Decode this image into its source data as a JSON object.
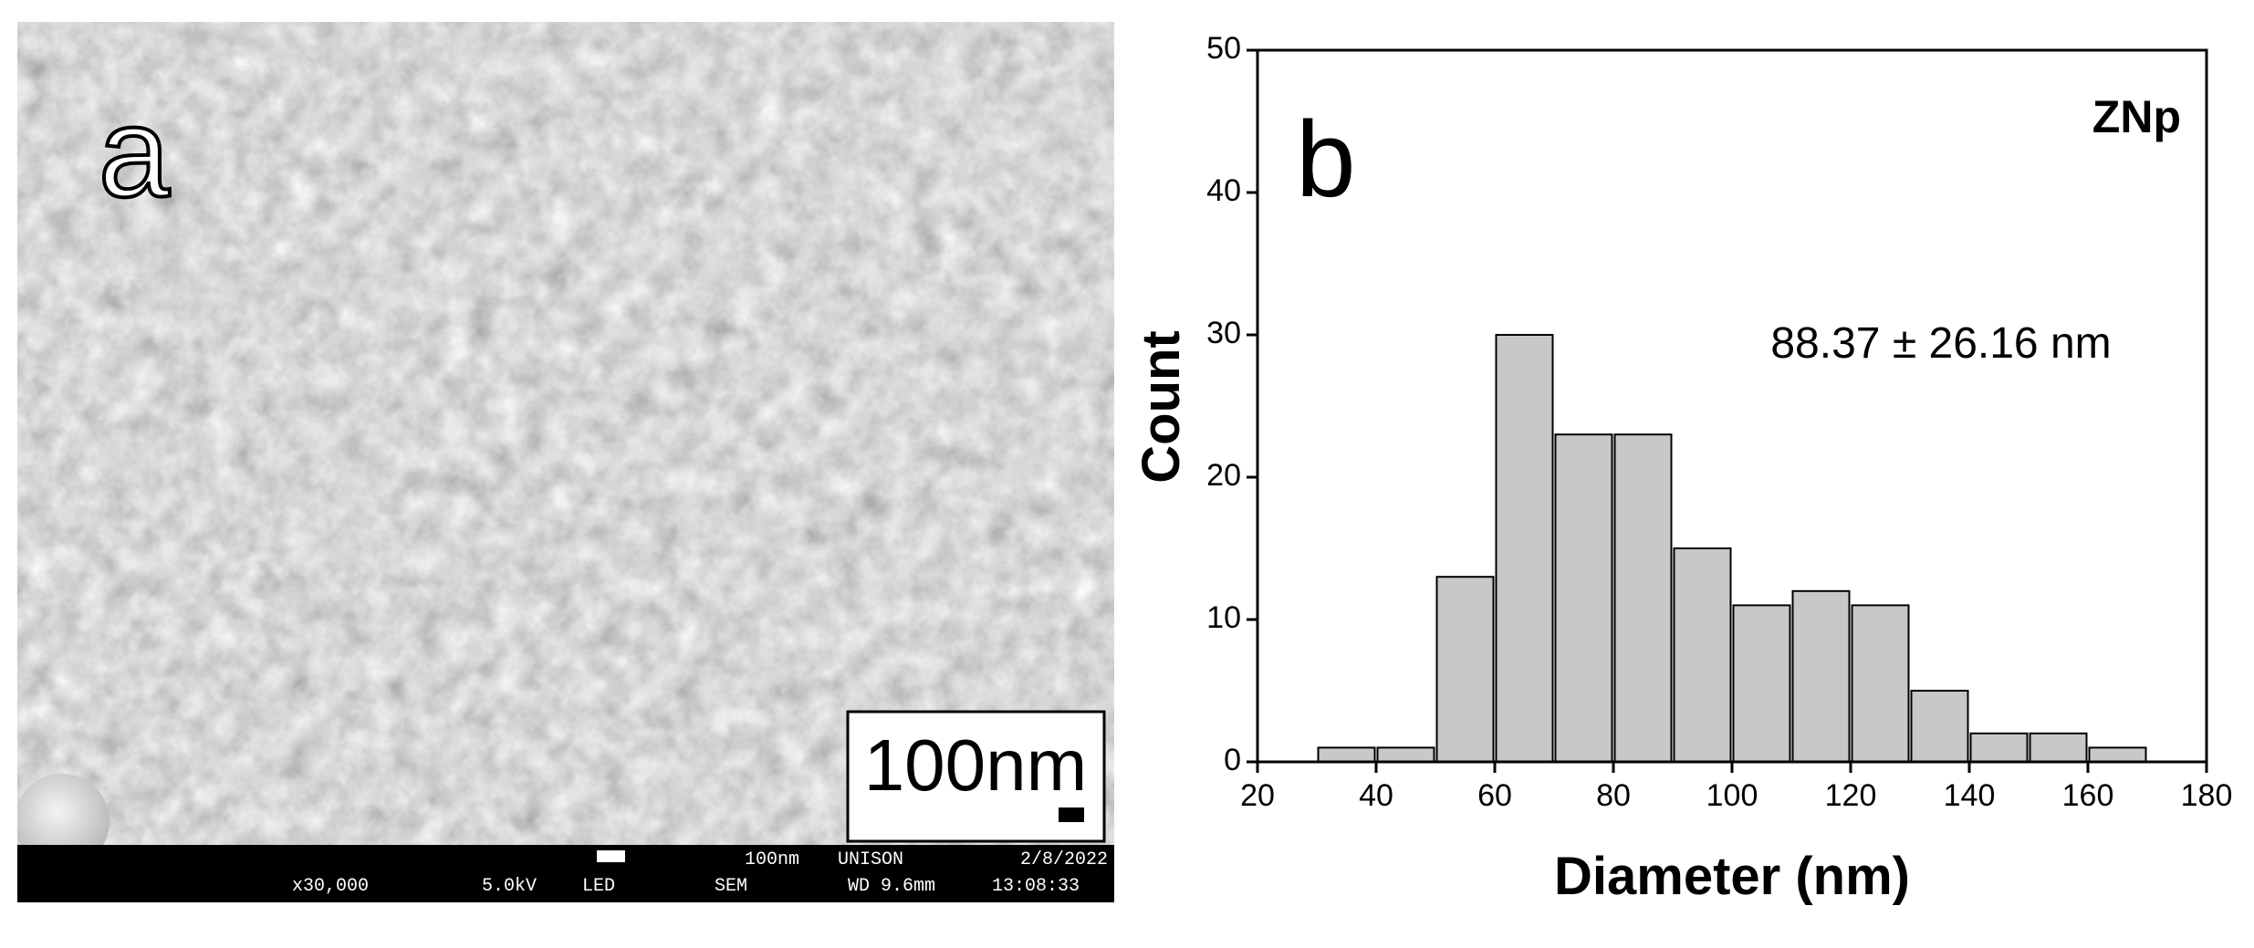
{
  "sem_image": {
    "label": "a",
    "scale_bar": "100nm",
    "info_bar": [
      "100nm",
      "UNISON",
      "2/8/2022",
      "x30,000",
      "5.0kV",
      "LED",
      "SEM",
      "WD 9.6mm",
      "13:08:33"
    ]
  },
  "chart_data": {
    "type": "histogram",
    "panel_label": "b",
    "annotations": [
      "ZNp",
      "88.37 ±  26.16 nm"
    ],
    "x_label": "Diameter (nm)",
    "y_label": "Count",
    "bins": [
      30,
      40,
      50,
      60,
      70,
      80,
      90,
      100,
      110,
      120,
      130,
      140,
      150,
      160,
      170
    ],
    "values": [
      1,
      1,
      13,
      30,
      23,
      23,
      15,
      11,
      12,
      11,
      5,
      2,
      2,
      1
    ],
    "color": "#c8c8c8",
    "xlim": [
      20,
      180
    ],
    "xticks": [
      20,
      40,
      60,
      80,
      100,
      120,
      140,
      160,
      180
    ],
    "ylim": [
      0,
      50
    ],
    "yticks": [
      0,
      10,
      20,
      30,
      40,
      50
    ]
  }
}
